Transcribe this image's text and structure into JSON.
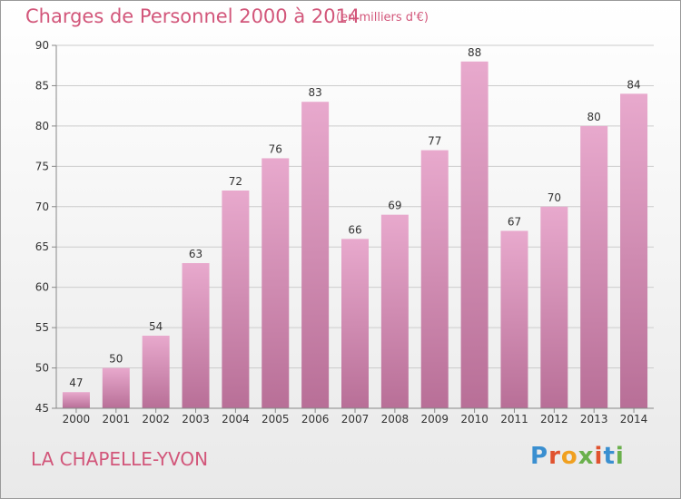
{
  "header": {
    "title": "Charges de Personnel 2000 à 2014",
    "subtitle": "(en milliers d'€)"
  },
  "footer": {
    "commune": "LA CHAPELLE-YVON",
    "brand": "Proxiti"
  },
  "colors": {
    "title": "#d2567a",
    "bar_top": "#e8a9cd",
    "bar_bottom": "#b86f97",
    "grid": "#cccccc",
    "axis": "#888888",
    "label": "#333333"
  },
  "chart_data": {
    "type": "bar",
    "title": "Charges de Personnel 2000 à 2014",
    "subtitle": "(en milliers d'€)",
    "categories": [
      "2000",
      "2001",
      "2002",
      "2003",
      "2004",
      "2005",
      "2006",
      "2007",
      "2008",
      "2009",
      "2010",
      "2011",
      "2012",
      "2013",
      "2014"
    ],
    "values": [
      47,
      50,
      54,
      63,
      72,
      76,
      83,
      66,
      69,
      77,
      88,
      67,
      70,
      80,
      84
    ],
    "ylim": [
      45,
      90
    ],
    "yticks": [
      45,
      50,
      55,
      60,
      65,
      70,
      75,
      80,
      85,
      90
    ],
    "grid": true,
    "data_labels": true,
    "xlabel": "",
    "ylabel": ""
  }
}
